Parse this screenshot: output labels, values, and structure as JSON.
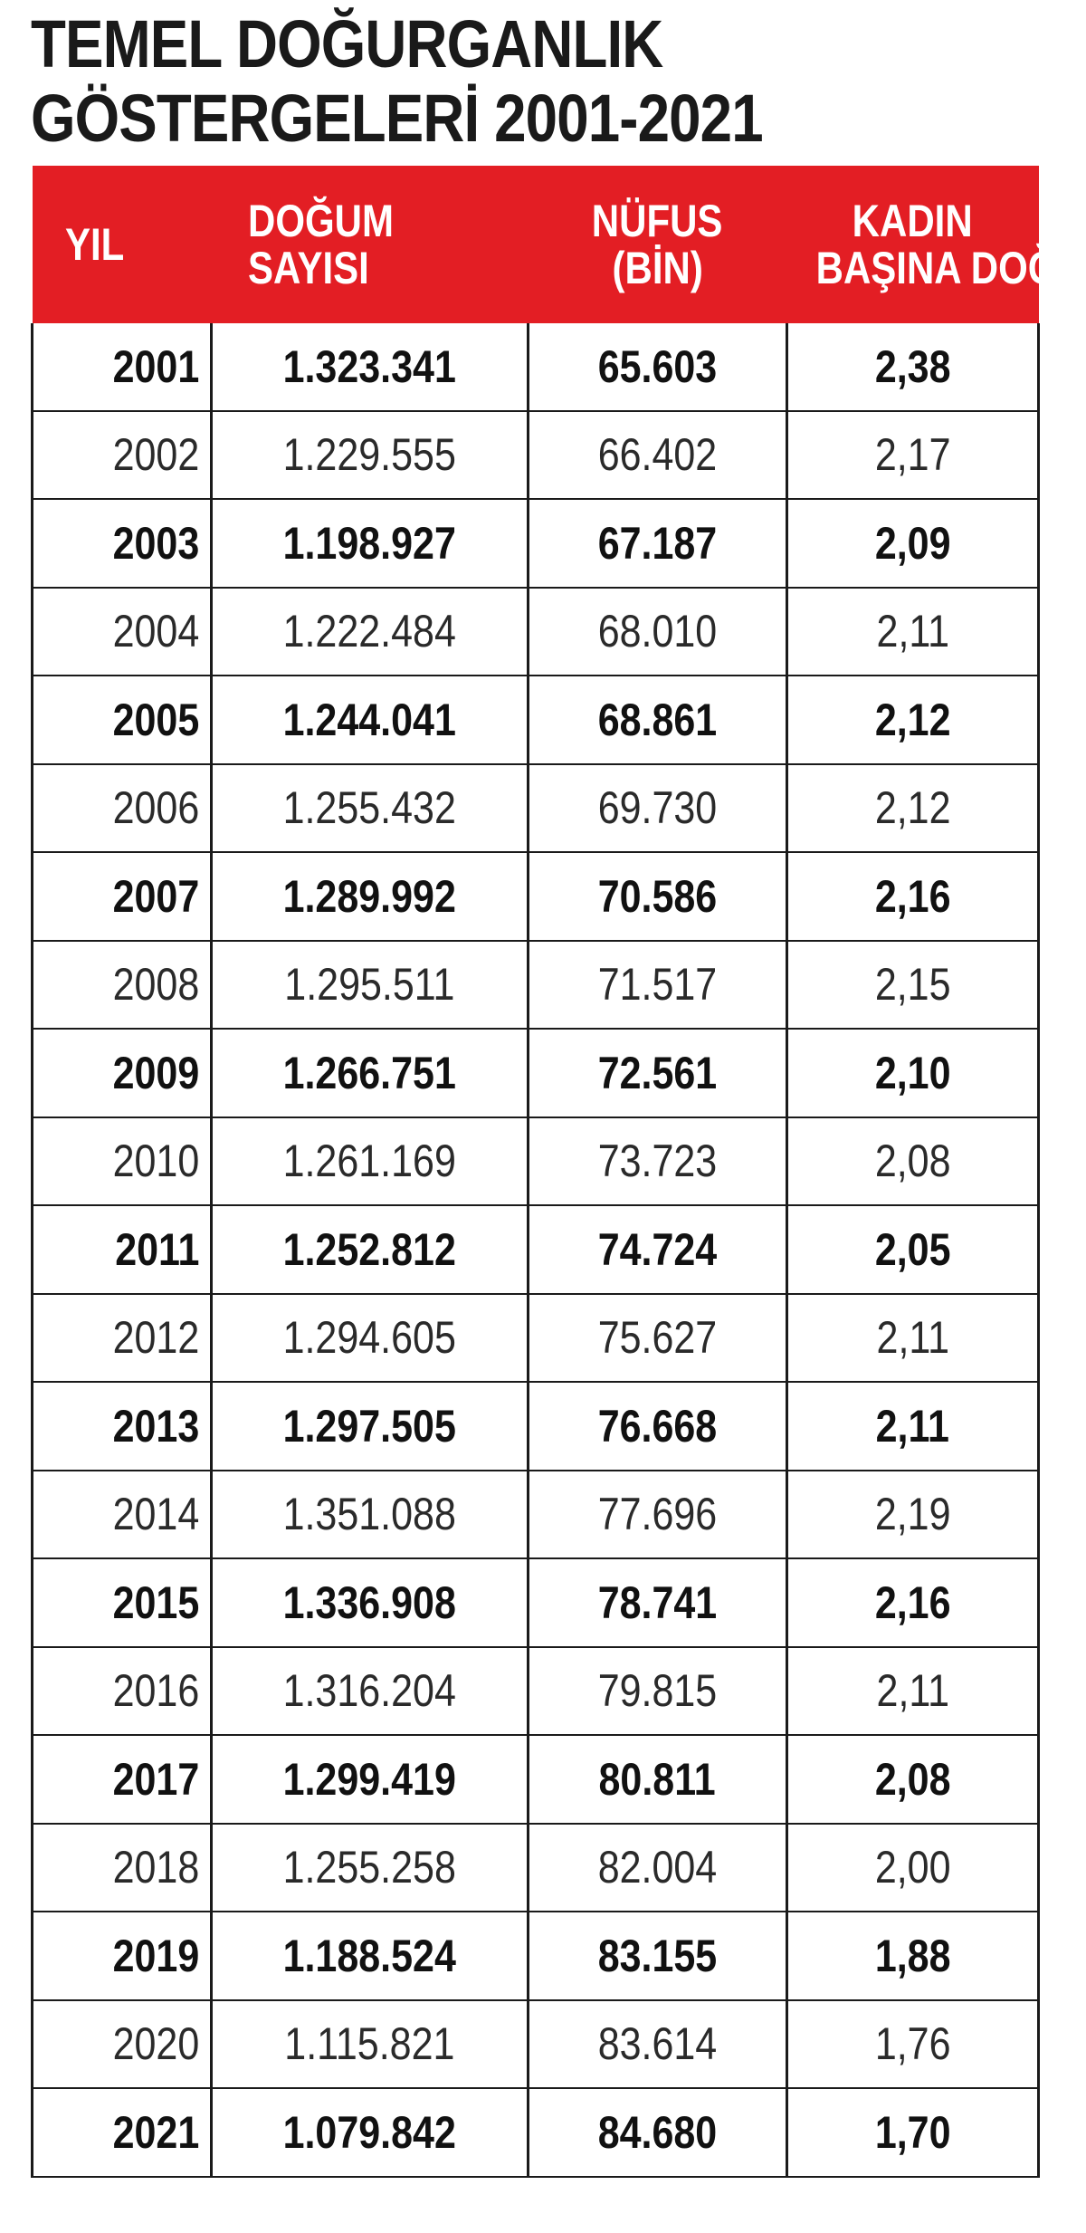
{
  "title": {
    "line1": "TEMEL DOĞURGANLIK",
    "line2": "GÖSTERGELERİ 2001-2021"
  },
  "chart_data": {
    "type": "table",
    "title": "TEMEL DOĞURGANLIK GÖSTERGELERİ 2001-2021",
    "columns": [
      {
        "line1": "YIL",
        "line2": ""
      },
      {
        "line1": "DOĞUM",
        "line2": "SAYISI"
      },
      {
        "line1": "NÜFUS",
        "line2": "(BİN)"
      },
      {
        "line1": "KADIN",
        "line2": "BAŞINA DOĞUM"
      }
    ],
    "header_color": "#e31e24",
    "rows": [
      {
        "year": "2001",
        "births": "1.323.341",
        "population": "65.603",
        "tfr": "2,38"
      },
      {
        "year": "2002",
        "births": "1.229.555",
        "population": "66.402",
        "tfr": "2,17"
      },
      {
        "year": "2003",
        "births": "1.198.927",
        "population": "67.187",
        "tfr": "2,09"
      },
      {
        "year": "2004",
        "births": "1.222.484",
        "population": "68.010",
        "tfr": "2,11"
      },
      {
        "year": "2005",
        "births": "1.244.041",
        "population": "68.861",
        "tfr": "2,12"
      },
      {
        "year": "2006",
        "births": "1.255.432",
        "population": "69.730",
        "tfr": "2,12"
      },
      {
        "year": "2007",
        "births": "1.289.992",
        "population": "70.586",
        "tfr": "2,16"
      },
      {
        "year": "2008",
        "births": "1.295.511",
        "population": "71.517",
        "tfr": "2,15"
      },
      {
        "year": "2009",
        "births": "1.266.751",
        "population": "72.561",
        "tfr": "2,10"
      },
      {
        "year": "2010",
        "births": "1.261.169",
        "population": "73.723",
        "tfr": "2,08"
      },
      {
        "year": "2011",
        "births": "1.252.812",
        "population": "74.724",
        "tfr": "2,05"
      },
      {
        "year": "2012",
        "births": "1.294.605",
        "population": "75.627",
        "tfr": "2,11"
      },
      {
        "year": "2013",
        "births": "1.297.505",
        "population": "76.668",
        "tfr": "2,11"
      },
      {
        "year": "2014",
        "births": "1.351.088",
        "population": "77.696",
        "tfr": "2,19"
      },
      {
        "year": "2015",
        "births": "1.336.908",
        "population": "78.741",
        "tfr": "2,16"
      },
      {
        "year": "2016",
        "births": "1.316.204",
        "population": "79.815",
        "tfr": "2,11"
      },
      {
        "year": "2017",
        "births": "1.299.419",
        "population": "80.811",
        "tfr": "2,08"
      },
      {
        "year": "2018",
        "births": "1.255.258",
        "population": "82.004",
        "tfr": "2,00"
      },
      {
        "year": "2019",
        "births": "1.188.524",
        "population": "83.155",
        "tfr": "1,88"
      },
      {
        "year": "2020",
        "births": "1.115.821",
        "population": "83.614",
        "tfr": "1,76"
      },
      {
        "year": "2021",
        "births": "1.079.842",
        "population": "84.680",
        "tfr": "1,70"
      }
    ]
  }
}
